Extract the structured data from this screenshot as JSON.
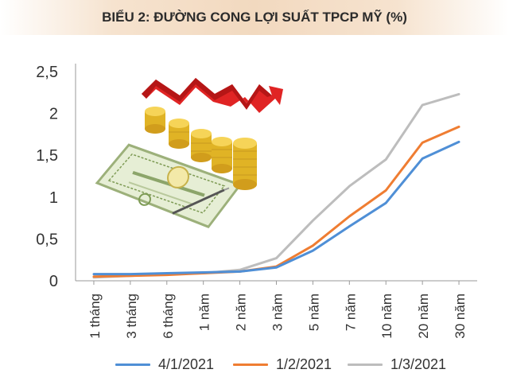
{
  "title": "BIỂU 2: ĐƯỜNG CONG LỢI SUẤT TPCP MỸ (%)",
  "chart_data": {
    "type": "line",
    "title": "BIỂU 2: ĐƯỜNG CONG LỢI SUẤT TPCP MỸ (%)",
    "categories": [
      "1 tháng",
      "3 tháng",
      "6 tháng",
      "1 năm",
      "2 năm",
      "3 năm",
      "5 năm",
      "7 năm",
      "10 năm",
      "20 năm",
      "30 năm"
    ],
    "yticks": [
      "0",
      "0,5",
      "1",
      "1,5",
      "2",
      "2,5"
    ],
    "ylim": [
      0,
      2.5
    ],
    "grid": false,
    "legend_position": "bottom",
    "series": [
      {
        "name": "4/1/2021",
        "color": "#4f8fd6",
        "values": [
          0.08,
          0.08,
          0.09,
          0.1,
          0.11,
          0.16,
          0.36,
          0.65,
          0.93,
          1.46,
          1.66
        ]
      },
      {
        "name": "1/2/2021",
        "color": "#ef7d32",
        "values": [
          0.05,
          0.06,
          0.07,
          0.09,
          0.11,
          0.17,
          0.42,
          0.77,
          1.08,
          1.65,
          1.84
        ]
      },
      {
        "name": "1/3/2021",
        "color": "#bdbdbd",
        "values": [
          0.04,
          0.06,
          0.08,
          0.09,
          0.13,
          0.27,
          0.72,
          1.13,
          1.45,
          2.1,
          2.23
        ]
      }
    ]
  }
}
